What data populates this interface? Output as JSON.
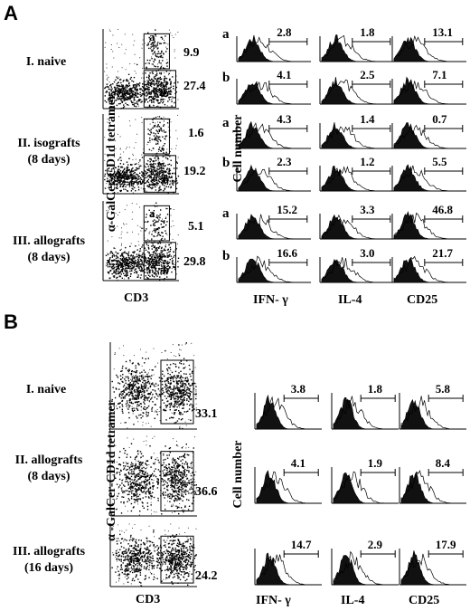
{
  "panelA": {
    "letter": "A",
    "rows": [
      {
        "label_l1": "I. naive",
        "label_l2": "",
        "gate_a": "9.9",
        "gate_b": "27.4"
      },
      {
        "label_l1": "II. isografts",
        "label_l2": "(8 days)",
        "gate_a": "1.6",
        "gate_b": "19.2"
      },
      {
        "label_l1": "III. allografts",
        "label_l2": "(8 days)",
        "gate_a": "5.1",
        "gate_b": "29.8"
      }
    ],
    "gate_letters": [
      "a",
      "b"
    ],
    "hist_values": [
      [
        "2.8",
        "1.8",
        "13.1"
      ],
      [
        "4.1",
        "2.5",
        "7.1"
      ],
      [
        "4.3",
        "1.4",
        "0.7"
      ],
      [
        "2.3",
        "1.2",
        "5.5"
      ],
      [
        "15.2",
        "3.3",
        "46.8"
      ],
      [
        "16.6",
        "3.0",
        "21.7"
      ]
    ],
    "y_axis": "α-GalCer-CD1d tetramer",
    "x_axis": "CD3",
    "cell_number": "Cell number",
    "hist_cols": [
      "IFN- γ",
      "IL-4",
      "CD25"
    ]
  },
  "panelB": {
    "letter": "B",
    "rows": [
      {
        "label_l1": "I. naive",
        "label_l2": "",
        "gate": "33.1"
      },
      {
        "label_l1": "II. allografts",
        "label_l2": "(8 days)",
        "gate": "36.6"
      },
      {
        "label_l1": "III. allografts",
        "label_l2": "(16 days)",
        "gate": "24.2"
      }
    ],
    "hist_values": [
      [
        "3.8",
        "1.8",
        "5.8"
      ],
      [
        "4.1",
        "1.9",
        "8.4"
      ],
      [
        "14.7",
        "2.9",
        "17.9"
      ]
    ],
    "y_axis": "α -GalCer-CD1d tetramer",
    "x_axis": "CD3",
    "cell_number": "Cell number",
    "hist_cols": [
      "IFN- γ",
      "IL-4",
      "CD25"
    ]
  }
}
